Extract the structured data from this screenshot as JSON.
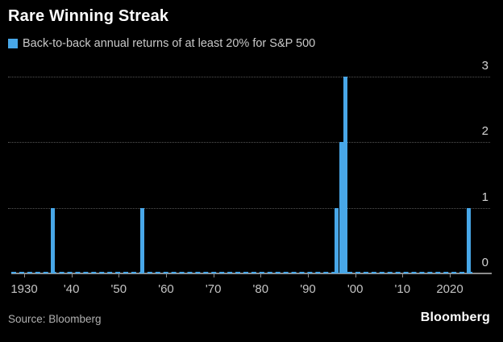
{
  "header": {
    "title": "Rare Winning Streak",
    "legend_label": "Back-to-back annual returns of at least 20% for S&P 500"
  },
  "footer": {
    "source": "Source: Bloomberg",
    "brand": "Bloomberg"
  },
  "colors": {
    "background": "#000000",
    "bar": "#48a7e8",
    "legend_swatch": "#48a7e8",
    "grid": "#555555",
    "axis": "#8c8c8c",
    "zero_line": "#48a7e8",
    "title_text": "#ffffff",
    "subtitle_text": "#c9c9c9",
    "tick_text": "#c4c4c4"
  },
  "chart_data": {
    "type": "bar",
    "title": "Rare Winning Streak",
    "legend": [
      "Back-to-back annual returns of at least 20% for S&P 500"
    ],
    "x": [
      1936,
      1955,
      1996,
      1997,
      1998,
      2024
    ],
    "values": [
      1,
      1,
      1,
      2,
      3,
      1
    ],
    "xlabel": "",
    "ylabel": "",
    "xlim": [
      1927,
      2029
    ],
    "ylim": [
      0,
      3
    ],
    "yticks": [
      0,
      1,
      2,
      3
    ],
    "xticks": [
      {
        "value": 1930,
        "label": "1930"
      },
      {
        "value": 1940,
        "label": "'40"
      },
      {
        "value": 1950,
        "label": "'50"
      },
      {
        "value": 1960,
        "label": "'60"
      },
      {
        "value": 1970,
        "label": "'70"
      },
      {
        "value": 1980,
        "label": "'80"
      },
      {
        "value": 1990,
        "label": "'90"
      },
      {
        "value": 2000,
        "label": "'00"
      },
      {
        "value": 2010,
        "label": "'10"
      },
      {
        "value": 2020,
        "label": "2020"
      }
    ],
    "grid": "horizontal-dotted",
    "legend_position": "top-left",
    "y_axis_side": "right",
    "source": "Source: Bloomberg"
  }
}
